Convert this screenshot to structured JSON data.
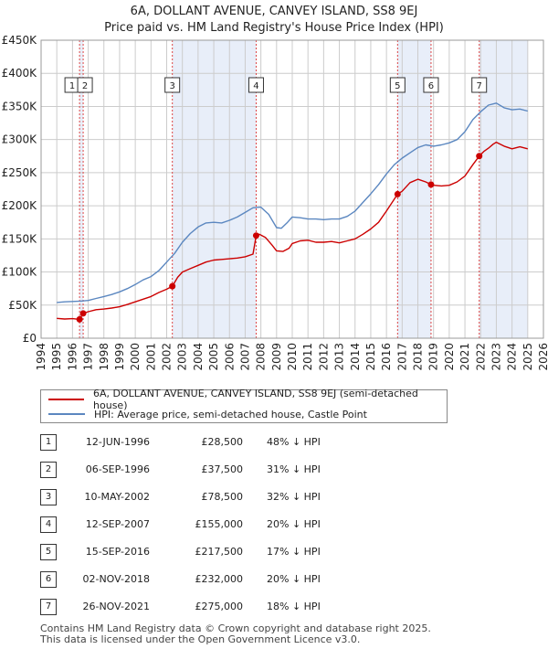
{
  "header": {
    "title_line1": "6A, DOLLANT AVENUE, CANVEY ISLAND, SS8 9EJ",
    "title_line2": "Price paid vs. HM Land Registry's House Price Index (HPI)"
  },
  "colors": {
    "price_line": "#cc0000",
    "hpi_line": "#5b87c0",
    "shade": "#e8eef9",
    "grid": "#cccccc",
    "vline": "#dd4444"
  },
  "chart_data": {
    "type": "line",
    "title": "Price paid vs. HM Land Registry's House Price Index (HPI)",
    "xlabel": "",
    "ylabel": "",
    "xlim": [
      1994,
      2026
    ],
    "ylim": [
      0,
      450000
    ],
    "x_ticks": [
      1994,
      1995,
      1996,
      1997,
      1998,
      1999,
      2000,
      2001,
      2002,
      2003,
      2004,
      2005,
      2006,
      2007,
      2008,
      2009,
      2010,
      2011,
      2012,
      2013,
      2014,
      2015,
      2016,
      2017,
      2018,
      2019,
      2020,
      2021,
      2022,
      2023,
      2024,
      2025,
      2026
    ],
    "y_ticks": [
      {
        "value": 0,
        "label": "£0"
      },
      {
        "value": 50000,
        "label": "£50K"
      },
      {
        "value": 100000,
        "label": "£100K"
      },
      {
        "value": 150000,
        "label": "£150K"
      },
      {
        "value": 200000,
        "label": "£200K"
      },
      {
        "value": 250000,
        "label": "£250K"
      },
      {
        "value": 300000,
        "label": "£300K"
      },
      {
        "value": 350000,
        "label": "£350K"
      },
      {
        "value": 400000,
        "label": "£400K"
      },
      {
        "value": 450000,
        "label": "£450K"
      }
    ],
    "shaded_ranges": [
      [
        1996.45,
        1996.68
      ],
      [
        2002.36,
        2007.7
      ],
      [
        2016.71,
        2018.84
      ],
      [
        2021.91,
        2025.0
      ]
    ],
    "sales": [
      {
        "id": "1",
        "x": 1996.45,
        "y": 28500
      },
      {
        "id": "2",
        "x": 1996.68,
        "y": 37500
      },
      {
        "id": "3",
        "x": 2002.36,
        "y": 78500
      },
      {
        "id": "4",
        "x": 2007.7,
        "y": 155000
      },
      {
        "id": "5",
        "x": 2016.71,
        "y": 217500
      },
      {
        "id": "6",
        "x": 2018.84,
        "y": 232000
      },
      {
        "id": "7",
        "x": 2021.91,
        "y": 275000
      }
    ],
    "series": [
      {
        "name": "6A, DOLLANT AVENUE, CANVEY ISLAND, SS8 9EJ (semi-detached house)",
        "x": [
          1995.0,
          1995.5,
          1996.0,
          1996.45,
          1996.68,
          1997.0,
          1997.5,
          1998.0,
          1998.5,
          1999.0,
          1999.5,
          2000.0,
          2000.5,
          2001.0,
          2001.5,
          2002.0,
          2002.36,
          2002.7,
          2003.0,
          2003.5,
          2004.0,
          2004.5,
          2005.0,
          2005.5,
          2006.0,
          2006.5,
          2007.0,
          2007.5,
          2007.7,
          2007.9,
          2008.3,
          2008.7,
          2009.0,
          2009.4,
          2009.8,
          2010.0,
          2010.5,
          2011.0,
          2011.5,
          2012.0,
          2012.5,
          2013.0,
          2013.5,
          2014.0,
          2014.5,
          2015.0,
          2015.5,
          2016.0,
          2016.5,
          2016.71,
          2017.0,
          2017.5,
          2018.0,
          2018.5,
          2018.84,
          2019.0,
          2019.5,
          2020.0,
          2020.5,
          2021.0,
          2021.5,
          2021.91,
          2022.2,
          2022.5,
          2022.8,
          2023.0,
          2023.5,
          2024.0,
          2024.5,
          2025.0
        ],
        "y": [
          30000,
          29000,
          29500,
          28500,
          37500,
          40000,
          43000,
          44000,
          45500,
          47500,
          51000,
          55000,
          59000,
          63000,
          69000,
          74000,
          78500,
          92000,
          100000,
          105000,
          110000,
          115000,
          118000,
          119000,
          120000,
          121000,
          123000,
          127000,
          155000,
          157000,
          152000,
          141000,
          132000,
          131000,
          136000,
          143000,
          147000,
          148000,
          145000,
          145000,
          146000,
          144000,
          147000,
          150000,
          157000,
          165000,
          175000,
          192000,
          210000,
          217500,
          222000,
          235000,
          240000,
          236000,
          232000,
          231000,
          230000,
          231000,
          236000,
          245000,
          262000,
          275000,
          282000,
          287000,
          293000,
          296000,
          290000,
          286000,
          289000,
          286000
        ]
      },
      {
        "name": "HPI: Average price, semi-detached house, Castle Point",
        "x": [
          1995.0,
          1995.5,
          1996.0,
          1996.5,
          1997.0,
          1997.5,
          1998.0,
          1998.5,
          1999.0,
          1999.5,
          2000.0,
          2000.5,
          2001.0,
          2001.5,
          2002.0,
          2002.5,
          2003.0,
          2003.5,
          2004.0,
          2004.5,
          2005.0,
          2005.5,
          2006.0,
          2006.5,
          2007.0,
          2007.5,
          2008.0,
          2008.5,
          2009.0,
          2009.3,
          2009.7,
          2010.0,
          2010.5,
          2011.0,
          2011.5,
          2012.0,
          2012.5,
          2013.0,
          2013.5,
          2014.0,
          2014.5,
          2015.0,
          2015.5,
          2016.0,
          2016.5,
          2017.0,
          2017.5,
          2018.0,
          2018.5,
          2019.0,
          2019.5,
          2020.0,
          2020.5,
          2021.0,
          2021.5,
          2022.0,
          2022.5,
          2023.0,
          2023.5,
          2024.0,
          2024.5,
          2025.0
        ],
        "y": [
          54000,
          55000,
          55500,
          56000,
          57000,
          60000,
          63000,
          66000,
          70000,
          75000,
          81000,
          88000,
          93000,
          102000,
          115000,
          128000,
          145000,
          158000,
          168000,
          174000,
          175000,
          174000,
          178000,
          183000,
          190000,
          197000,
          198000,
          187000,
          167000,
          166000,
          175000,
          183000,
          182000,
          180000,
          180000,
          179000,
          180000,
          180000,
          184000,
          192000,
          205000,
          218000,
          232000,
          248000,
          262000,
          272000,
          280000,
          288000,
          292000,
          290000,
          292000,
          295000,
          300000,
          312000,
          330000,
          342000,
          352000,
          355000,
          348000,
          345000,
          346000,
          343000
        ]
      }
    ]
  },
  "legend": {
    "items": [
      {
        "label": "6A, DOLLANT AVENUE, CANVEY ISLAND, SS8 9EJ (semi-detached house)",
        "color": "#cc0000"
      },
      {
        "label": "HPI: Average price, semi-detached house, Castle Point",
        "color": "#5b87c0"
      }
    ]
  },
  "table": {
    "rows": [
      {
        "num": "1",
        "date": "12-JUN-1996",
        "price": "£28,500",
        "hpi": "48% ↓ HPI"
      },
      {
        "num": "2",
        "date": "06-SEP-1996",
        "price": "£37,500",
        "hpi": "31% ↓ HPI"
      },
      {
        "num": "3",
        "date": "10-MAY-2002",
        "price": "£78,500",
        "hpi": "32% ↓ HPI"
      },
      {
        "num": "4",
        "date": "12-SEP-2007",
        "price": "£155,000",
        "hpi": "20% ↓ HPI"
      },
      {
        "num": "5",
        "date": "15-SEP-2016",
        "price": "£217,500",
        "hpi": "17% ↓ HPI"
      },
      {
        "num": "6",
        "date": "02-NOV-2018",
        "price": "£232,000",
        "hpi": "20% ↓ HPI"
      },
      {
        "num": "7",
        "date": "26-NOV-2021",
        "price": "£275,000",
        "hpi": "18% ↓ HPI"
      }
    ]
  },
  "footer": {
    "line1": "Contains HM Land Registry data © Crown copyright and database right 2025.",
    "line2": "This data is licensed under the Open Government Licence v3.0."
  }
}
